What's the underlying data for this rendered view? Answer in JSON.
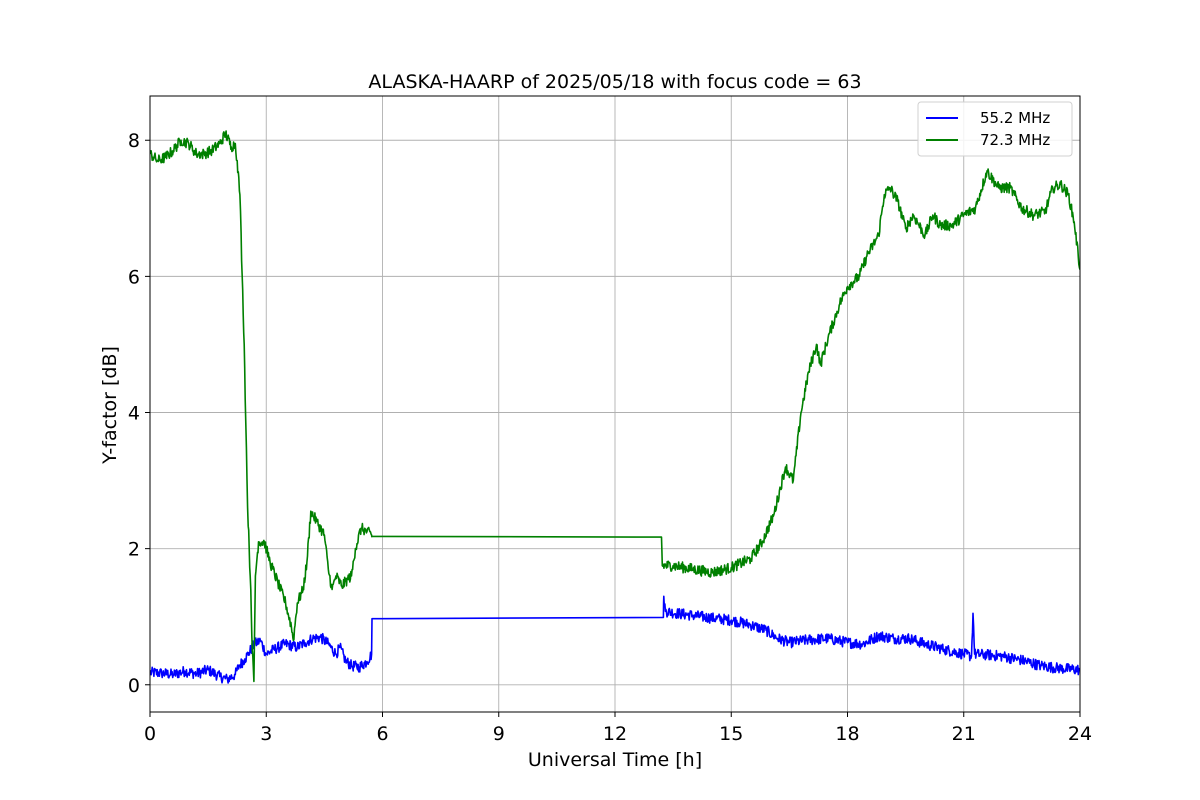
{
  "chart_data": {
    "type": "line",
    "title": "ALASKA-HAARP of 2025/05/18 with focus code = 63",
    "xlabel": "Universal Time [h]",
    "ylabel": "Y-factor [dB]",
    "xlim": [
      0,
      24
    ],
    "ylim": [
      -0.4,
      8.65
    ],
    "xticks": [
      0,
      3,
      6,
      9,
      12,
      15,
      18,
      21,
      24
    ],
    "yticks": [
      0,
      2,
      4,
      6,
      8
    ],
    "grid": true,
    "legend_position": "top-right",
    "series": [
      {
        "name": "55.2 MHz",
        "color": "#0000ff",
        "points": [
          [
            0,
            0.18
          ],
          [
            0.3,
            0.17
          ],
          [
            0.6,
            0.15
          ],
          [
            0.9,
            0.2
          ],
          [
            1.2,
            0.16
          ],
          [
            1.5,
            0.22
          ],
          [
            1.8,
            0.12
          ],
          [
            2.0,
            0.08
          ],
          [
            2.2,
            0.15
          ],
          [
            2.3,
            0.28
          ],
          [
            2.45,
            0.38
          ],
          [
            2.55,
            0.47
          ],
          [
            2.7,
            0.6
          ],
          [
            2.85,
            0.65
          ],
          [
            3.0,
            0.45
          ],
          [
            3.2,
            0.52
          ],
          [
            3.5,
            0.6
          ],
          [
            3.8,
            0.55
          ],
          [
            4.0,
            0.62
          ],
          [
            4.2,
            0.68
          ],
          [
            4.4,
            0.7
          ],
          [
            4.6,
            0.6
          ],
          [
            4.8,
            0.45
          ],
          [
            4.9,
            0.55
          ],
          [
            5.05,
            0.35
          ],
          [
            5.2,
            0.28
          ],
          [
            5.4,
            0.26
          ],
          [
            5.6,
            0.34
          ],
          [
            5.72,
            0.45
          ],
          [
            5.73,
            0.97
          ],
          [
            13.25,
            0.99
          ],
          [
            13.26,
            1.3
          ],
          [
            13.3,
            1.08
          ],
          [
            13.6,
            1.05
          ],
          [
            14.0,
            1.02
          ],
          [
            14.5,
            0.98
          ],
          [
            15.0,
            0.95
          ],
          [
            15.5,
            0.88
          ],
          [
            15.9,
            0.8
          ],
          [
            16.2,
            0.68
          ],
          [
            16.5,
            0.62
          ],
          [
            17.0,
            0.66
          ],
          [
            17.5,
            0.68
          ],
          [
            18.0,
            0.62
          ],
          [
            18.4,
            0.6
          ],
          [
            18.8,
            0.72
          ],
          [
            19.2,
            0.68
          ],
          [
            19.6,
            0.68
          ],
          [
            20.0,
            0.6
          ],
          [
            20.5,
            0.52
          ],
          [
            21.0,
            0.45
          ],
          [
            21.2,
            0.42
          ],
          [
            21.24,
            1.05
          ],
          [
            21.28,
            0.45
          ],
          [
            21.6,
            0.44
          ],
          [
            22.0,
            0.42
          ],
          [
            22.5,
            0.36
          ],
          [
            23.0,
            0.28
          ],
          [
            23.5,
            0.24
          ],
          [
            24.0,
            0.22
          ]
        ]
      },
      {
        "name": "72.3 MHz",
        "color": "#008000",
        "points": [
          [
            0,
            7.8
          ],
          [
            0.2,
            7.7
          ],
          [
            0.4,
            7.75
          ],
          [
            0.6,
            7.85
          ],
          [
            0.8,
            8.0
          ],
          [
            1.0,
            7.95
          ],
          [
            1.2,
            7.8
          ],
          [
            1.4,
            7.8
          ],
          [
            1.6,
            7.85
          ],
          [
            1.8,
            7.95
          ],
          [
            1.95,
            8.1
          ],
          [
            2.1,
            7.9
          ],
          [
            2.2,
            7.95
          ],
          [
            2.25,
            7.7
          ],
          [
            2.32,
            7.2
          ],
          [
            2.38,
            6.0
          ],
          [
            2.43,
            5.0
          ],
          [
            2.47,
            3.9
          ],
          [
            2.52,
            2.6
          ],
          [
            2.56,
            2.0
          ],
          [
            2.6,
            1.4
          ],
          [
            2.64,
            0.5
          ],
          [
            2.68,
            0.05
          ],
          [
            2.72,
            1.6
          ],
          [
            2.8,
            2.1
          ],
          [
            2.95,
            2.1
          ],
          [
            3.1,
            1.8
          ],
          [
            3.3,
            1.5
          ],
          [
            3.5,
            1.2
          ],
          [
            3.65,
            0.85
          ],
          [
            3.7,
            0.65
          ],
          [
            3.8,
            1.2
          ],
          [
            3.95,
            1.4
          ],
          [
            4.05,
            1.8
          ],
          [
            4.15,
            2.55
          ],
          [
            4.3,
            2.4
          ],
          [
            4.5,
            2.2
          ],
          [
            4.6,
            1.7
          ],
          [
            4.7,
            1.4
          ],
          [
            4.8,
            1.6
          ],
          [
            4.95,
            1.45
          ],
          [
            5.1,
            1.55
          ],
          [
            5.2,
            1.6
          ],
          [
            5.3,
            2.0
          ],
          [
            5.45,
            2.3
          ],
          [
            5.6,
            2.25
          ],
          [
            5.72,
            2.2
          ],
          [
            5.73,
            2.18
          ],
          [
            13.2,
            2.17
          ],
          [
            13.22,
            1.75
          ],
          [
            13.5,
            1.75
          ],
          [
            14.0,
            1.7
          ],
          [
            14.5,
            1.65
          ],
          [
            15.0,
            1.72
          ],
          [
            15.5,
            1.85
          ],
          [
            15.8,
            2.1
          ],
          [
            16.1,
            2.5
          ],
          [
            16.4,
            3.2
          ],
          [
            16.6,
            3.0
          ],
          [
            16.8,
            4.0
          ],
          [
            17.0,
            4.6
          ],
          [
            17.2,
            5.0
          ],
          [
            17.3,
            4.7
          ],
          [
            17.5,
            5.1
          ],
          [
            17.8,
            5.6
          ],
          [
            18.0,
            5.85
          ],
          [
            18.3,
            6.0
          ],
          [
            18.5,
            6.3
          ],
          [
            18.8,
            6.6
          ],
          [
            18.95,
            7.2
          ],
          [
            19.1,
            7.3
          ],
          [
            19.3,
            7.1
          ],
          [
            19.5,
            6.7
          ],
          [
            19.7,
            6.9
          ],
          [
            20.0,
            6.6
          ],
          [
            20.2,
            6.9
          ],
          [
            20.4,
            6.75
          ],
          [
            20.7,
            6.75
          ],
          [
            21.0,
            6.9
          ],
          [
            21.3,
            7.0
          ],
          [
            21.6,
            7.55
          ],
          [
            21.9,
            7.3
          ],
          [
            22.2,
            7.3
          ],
          [
            22.5,
            7.0
          ],
          [
            22.8,
            6.9
          ],
          [
            23.1,
            6.95
          ],
          [
            23.3,
            7.3
          ],
          [
            23.5,
            7.35
          ],
          [
            23.7,
            7.2
          ],
          [
            23.85,
            6.8
          ],
          [
            24.0,
            6.1
          ]
        ]
      }
    ]
  }
}
